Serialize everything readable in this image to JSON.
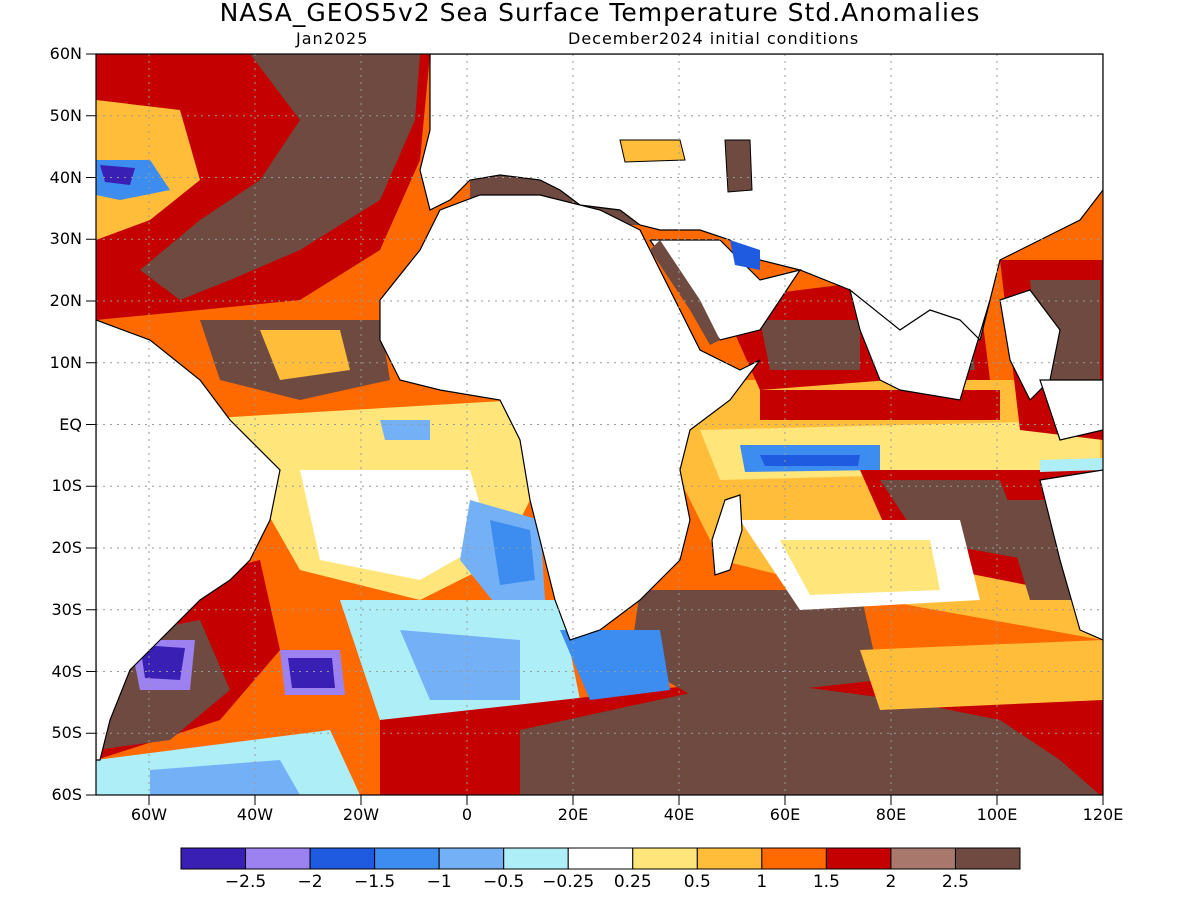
{
  "title": "NASA_GEOS5v2 Sea Surface Temperature Std.Anomalies",
  "subtitle_left": "Jan2025",
  "subtitle_right": "December2024 initial conditions",
  "y_axis_labels": [
    "60N",
    "50N",
    "40N",
    "30N",
    "20N",
    "10N",
    "EQ",
    "10S",
    "20S",
    "30S",
    "40S",
    "50S",
    "60S"
  ],
  "x_axis_labels": [
    "60W",
    "40W",
    "20W",
    "0",
    "20E",
    "40E",
    "60E",
    "80E",
    "100E",
    "120E"
  ],
  "colorbar": {
    "colors": [
      "#3a1fb5",
      "#9b82f0",
      "#1f5be0",
      "#3d8cf0",
      "#74b0f5",
      "#aeeef7",
      "#ffffff",
      "#ffe57a",
      "#ffbd3a",
      "#ff6a00",
      "#c40000",
      "#a8786c",
      "#6e4a40"
    ],
    "labels": [
      "-2.5",
      "-2",
      "-1.5",
      "-1",
      "-0.5",
      "-0.25",
      "0.25",
      "0.5",
      "1",
      "1.5",
      "2",
      "2.5"
    ]
  },
  "map": {
    "land_color": "#ffffff",
    "coastline_color": "#000000",
    "grid": true,
    "lon_range": [
      -70,
      120
    ],
    "lat_range": [
      -60,
      60
    ]
  }
}
